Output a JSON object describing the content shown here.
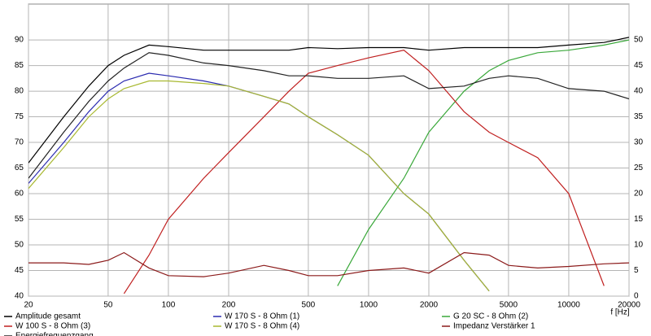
{
  "chart_data": {
    "type": "line",
    "x_label": "f [Hz]",
    "x": [
      20,
      30,
      40,
      50,
      60,
      80,
      100,
      150,
      200,
      300,
      400,
      500,
      700,
      1000,
      1500,
      2000,
      3000,
      4000,
      5000,
      7000,
      10000,
      15000,
      20000
    ],
    "xlim": [
      20,
      20000
    ],
    "xscale": "log",
    "xticks": [
      20,
      50,
      100,
      200,
      500,
      1000,
      2000,
      5000,
      10000,
      20000
    ],
    "ylim": [
      40,
      97
    ],
    "yticks": [
      40,
      45,
      50,
      55,
      60,
      65,
      70,
      75,
      80,
      85,
      90
    ],
    "y2lim": [
      0,
      57
    ],
    "y2ticks": [
      0,
      5,
      10,
      15,
      20,
      25,
      30,
      35,
      40,
      45,
      50
    ],
    "grid": true,
    "legend": "bottom",
    "series": [
      {
        "name": "Amplitude gesamt",
        "color": "#000000",
        "values": [
          66,
          75,
          81,
          85,
          87,
          89,
          88.7,
          88,
          88,
          88,
          88,
          88.5,
          88.3,
          88.5,
          88.5,
          88,
          88.5,
          88.5,
          88.5,
          88.5,
          89,
          89.5,
          90.5
        ]
      },
      {
        "name": "W 170 S - 8 Ohm (1)",
        "color": "#2b2bb0",
        "values": [
          62,
          70,
          76,
          80,
          82,
          83.5,
          83,
          82,
          81,
          79,
          77.5,
          75,
          71.5,
          67.5,
          60,
          56,
          47,
          41,
          null,
          null,
          null,
          null,
          null
        ]
      },
      {
        "name": "G 20 SC - 8 Ohm (2)",
        "color": "#3aa83a",
        "values": [
          null,
          null,
          null,
          null,
          null,
          null,
          null,
          null,
          null,
          null,
          null,
          null,
          42,
          53,
          63,
          72,
          80,
          84,
          86,
          87.5,
          88,
          89,
          90
        ]
      },
      {
        "name": "W 100 S - 8 Ohm (3)",
        "color": "#c02020",
        "values": [
          null,
          null,
          null,
          null,
          40.5,
          48,
          55,
          63,
          68,
          75,
          80,
          83.5,
          85,
          86.5,
          88,
          84,
          76,
          72,
          70,
          67,
          60,
          42,
          null
        ]
      },
      {
        "name": "W 170 S - 8 Ohm (4)",
        "color": "#a8b830",
        "values": [
          61,
          69,
          75,
          78.5,
          80.5,
          82,
          82,
          81.5,
          81,
          79,
          77.5,
          75,
          71.5,
          67.5,
          60,
          56,
          47,
          41,
          null,
          null,
          null,
          null,
          null
        ]
      },
      {
        "name": "Impedanz Verstärker 1",
        "color": "#8b1a1a",
        "axis": "y2",
        "values": [
          6.5,
          6.5,
          6.2,
          7,
          8.5,
          5.5,
          4,
          3.8,
          4.5,
          6,
          5,
          4,
          4,
          5,
          5.5,
          4.5,
          8.5,
          8,
          6,
          5.5,
          5.8,
          6.3,
          6.5
        ]
      },
      {
        "name": "Energiefrequenzgang",
        "color": "#222222",
        "values": [
          63,
          72,
          78,
          82,
          84.5,
          87.5,
          87,
          85.5,
          85,
          84,
          83,
          83,
          82.5,
          82.5,
          83,
          80.5,
          81,
          82.5,
          83,
          82.5,
          80.5,
          80,
          78.5
        ]
      }
    ]
  }
}
